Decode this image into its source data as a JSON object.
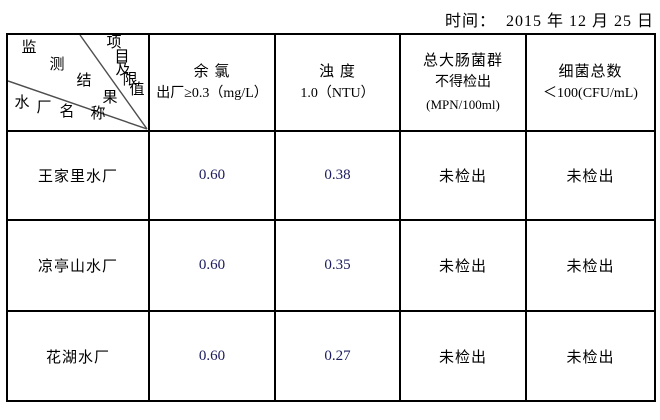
{
  "header": {
    "date": "时间：  2015 年 12 月 25 日"
  },
  "table": {
    "corner": {
      "middle": "监测结果",
      "top_right": "项目及限值",
      "bottom_left": "水厂名称"
    },
    "columns": [
      {
        "title": "余 氯",
        "limit": "出厂≥0.3（mg/L）",
        "unit": ""
      },
      {
        "title": "浊 度",
        "limit": "1.0（NTU）",
        "unit": ""
      },
      {
        "title": "总大肠菌群",
        "limit": "不得检出",
        "unit": "(MPN/100ml)"
      },
      {
        "title": "细菌总数",
        "limit": "＜100(CFU/mL)",
        "unit": ""
      }
    ],
    "rows": [
      {
        "name": "王家里水厂",
        "chlorine": "0.60",
        "turbidity": "0.38",
        "coliform": "未检出",
        "bacteria": "未检出"
      },
      {
        "name": "凉亭山水厂",
        "chlorine": "0.60",
        "turbidity": "0.35",
        "coliform": "未检出",
        "bacteria": "未检出"
      },
      {
        "name": "花湖水厂",
        "chlorine": "0.60",
        "turbidity": "0.27",
        "coliform": "未检出",
        "bacteria": "未检出"
      }
    ]
  }
}
